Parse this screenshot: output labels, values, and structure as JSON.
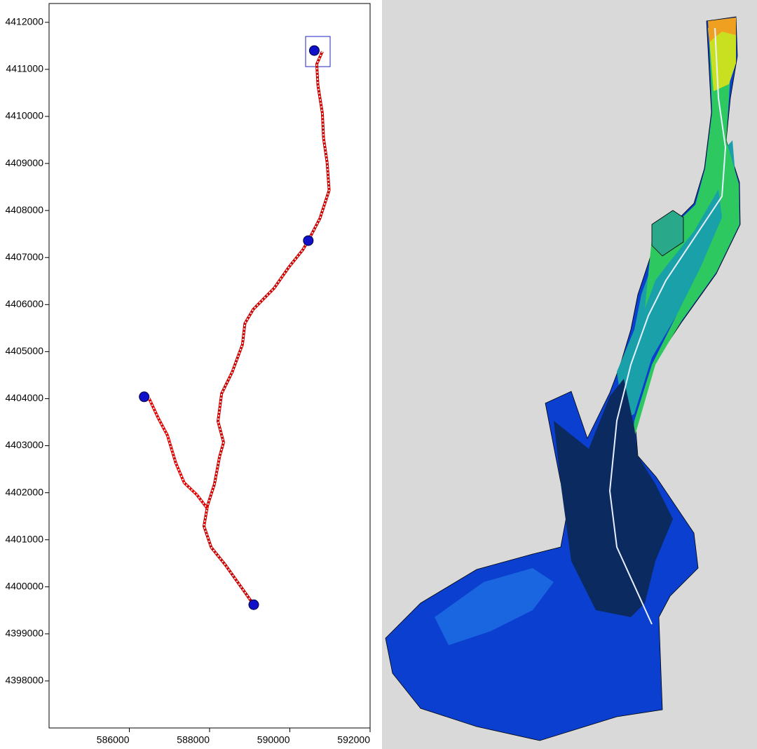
{
  "chart_data": {
    "type": "line",
    "xlim": [
      584000,
      592000
    ],
    "ylim": [
      4397000,
      4412400
    ],
    "xticks": [
      586000,
      588000,
      590000,
      592000
    ],
    "yticks": [
      4398000,
      4399000,
      4400000,
      4401000,
      4402000,
      4403000,
      4404000,
      4405000,
      4406000,
      4407000,
      4408000,
      4409000,
      4410000,
      4411000,
      4412000
    ],
    "series": [
      {
        "color": "#cc0000",
        "x": [
          589100,
          588800,
          588390,
          588040,
          587860,
          587950,
          588120,
          588250,
          588350,
          588210,
          588300,
          588560,
          588820,
          588880,
          589090,
          589610,
          589970,
          590320,
          590460,
          590750,
          590980,
          590930,
          590840,
          590810,
          590700,
          590670,
          590810
        ],
        "values": [
          4399620,
          4399980,
          4400470,
          4400840,
          4401290,
          4401730,
          4402180,
          4402770,
          4403070,
          4403520,
          4404110,
          4404560,
          4405150,
          4405600,
          4405900,
          4406350,
          4406790,
          4407160,
          4407360,
          4407830,
          4408430,
          4409020,
          4409540,
          4410070,
          4410660,
          4411110,
          4411380
        ]
      },
      {
        "color": "#e00000",
        "x": [
          586490,
          586720,
          586950,
          587160,
          587370,
          587680,
          587950
        ],
        "values": [
          4404010,
          4403590,
          4403220,
          4402630,
          4402210,
          4401960,
          4401660
        ]
      }
    ],
    "nodes": {
      "color": "#1010c8",
      "x": [
        589100,
        586370,
        590460,
        590610
      ],
      "values": [
        4399620,
        4404040,
        4407360,
        4411400
      ]
    }
  }
}
